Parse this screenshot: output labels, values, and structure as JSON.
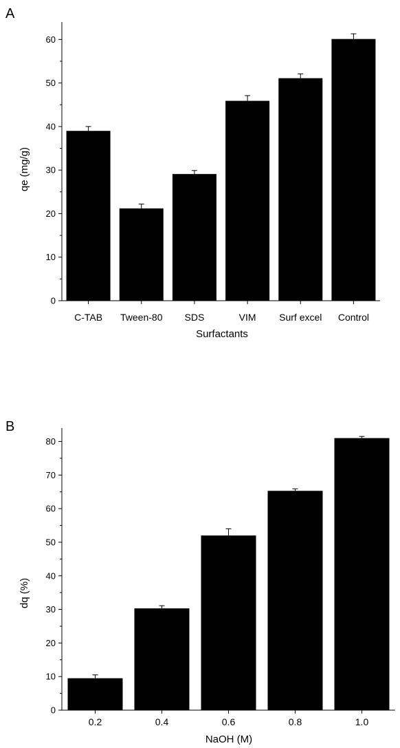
{
  "chart_data": [
    {
      "panel_label": "A",
      "type": "bar",
      "categories": [
        "C-TAB",
        "Tween-80",
        "SDS",
        "VIM",
        "Surf excel",
        "Control"
      ],
      "values": [
        39,
        21.2,
        29.1,
        45.9,
        51.1,
        60.1
      ],
      "errors": [
        1.0,
        1.0,
        0.8,
        1.2,
        1.0,
        1.2
      ],
      "title": "",
      "xlabel": "Surfactants",
      "ylabel": "qe (mg/g)",
      "ylim": [
        0,
        64
      ],
      "yticks": [
        0,
        10,
        20,
        30,
        40,
        50,
        60
      ],
      "grid": false,
      "legend": "none",
      "bar_color": "#000000"
    },
    {
      "panel_label": "B",
      "type": "bar",
      "categories": [
        "0.2",
        "0.4",
        "0.6",
        "0.8",
        "1.0"
      ],
      "values": [
        9.5,
        30.3,
        52,
        65.3,
        81
      ],
      "errors": [
        1.0,
        0.8,
        2.0,
        0.6,
        0.5
      ],
      "title": "",
      "xlabel": "NaOH (M)",
      "ylabel": "dq (%)",
      "ylim": [
        0,
        84
      ],
      "yticks": [
        0,
        10,
        20,
        30,
        40,
        50,
        60,
        70,
        80
      ],
      "grid": false,
      "legend": "none",
      "bar_color": "#000000"
    }
  ]
}
